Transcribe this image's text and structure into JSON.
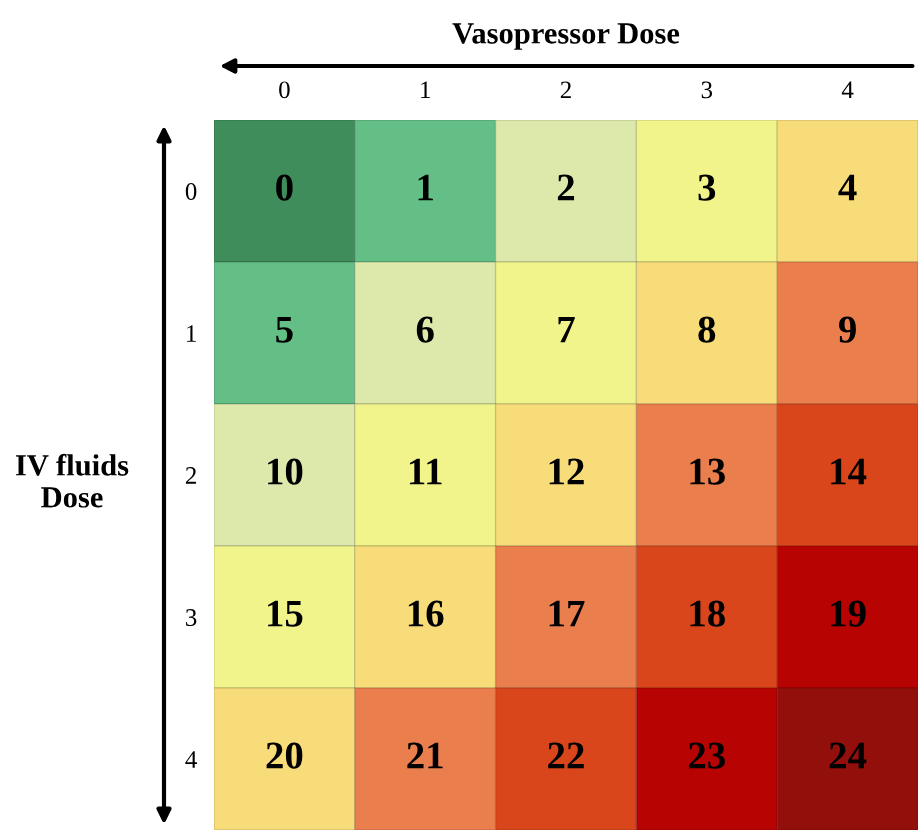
{
  "chart_data": {
    "type": "heatmap",
    "xlabel": "Vasopressor Dose",
    "ylabel": "IV fluids\nDose",
    "categories": [
      "0",
      "1",
      "2",
      "3",
      "4"
    ],
    "y_categories": [
      "0",
      "1",
      "2",
      "3",
      "4"
    ],
    "cells": [
      [
        0,
        1,
        2,
        3,
        4
      ],
      [
        5,
        6,
        7,
        8,
        9
      ],
      [
        10,
        11,
        12,
        13,
        14
      ],
      [
        15,
        16,
        17,
        18,
        19
      ],
      [
        20,
        21,
        22,
        23,
        24
      ]
    ],
    "colors": [
      [
        "#3f8d5b",
        "#63bf86",
        "#dce9ab",
        "#f0f48a",
        "#f8dc7a"
      ],
      [
        "#63bf86",
        "#dce9ab",
        "#f0f48a",
        "#f8dc7a",
        "#ea7e4c"
      ],
      [
        "#dce9ab",
        "#f0f48a",
        "#f8dc7a",
        "#ea7e4c",
        "#d9461c"
      ],
      [
        "#f0f48a",
        "#f8dc7a",
        "#ea7e4c",
        "#d9461c",
        "#b70302"
      ],
      [
        "#f8dc7a",
        "#ea7e4c",
        "#d9461c",
        "#b70302",
        "#930f0b"
      ]
    ],
    "data_labels": true
  }
}
